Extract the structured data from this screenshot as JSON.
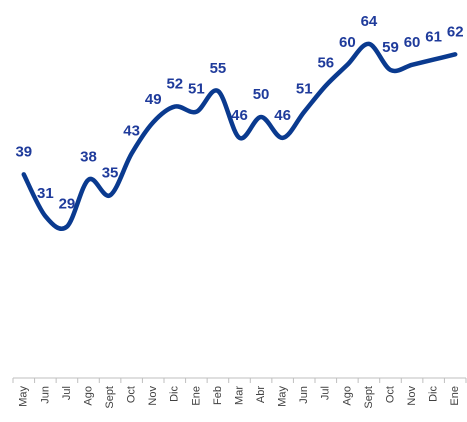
{
  "chart_data": {
    "type": "line",
    "categories": [
      "May",
      "Jun",
      "Jul",
      "Ago",
      "Sept",
      "Oct",
      "Nov",
      "Dic",
      "Ene",
      "Feb",
      "Mar",
      "Abr",
      "May",
      "Jun",
      "Jul",
      "Ago",
      "Sept",
      "Oct",
      "Nov",
      "Dic",
      "Ene"
    ],
    "values": [
      39,
      31,
      29,
      38,
      35,
      43,
      49,
      52,
      51,
      55,
      46,
      50,
      46,
      51,
      56,
      60,
      64,
      59,
      60,
      61,
      62
    ],
    "color": "#0a3a8f"
  }
}
